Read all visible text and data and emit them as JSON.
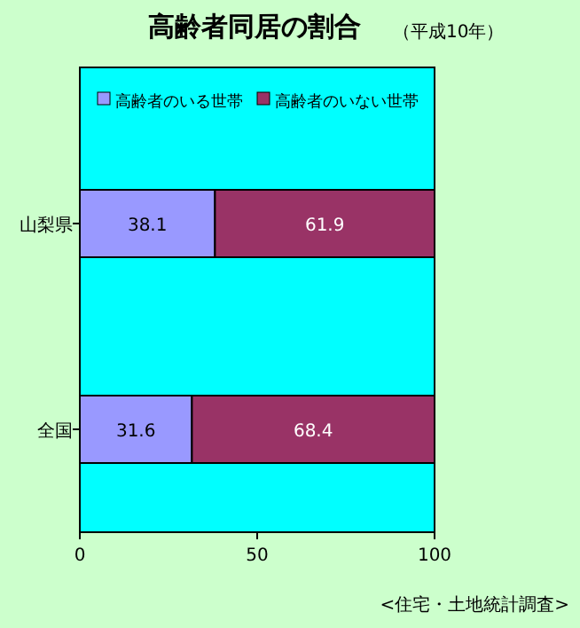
{
  "chart_data": {
    "type": "bar",
    "orientation": "horizontal",
    "stacked": true,
    "title": "高齢者同居の割合",
    "subtitle": "（平成10年）",
    "categories": [
      "山梨県",
      "全国"
    ],
    "series": [
      {
        "name": "高齢者のいる世帯",
        "color": "#9999ff",
        "values": [
          38.1,
          31.6
        ]
      },
      {
        "name": "高齢者のいない世帯",
        "color": "#993366",
        "values": [
          61.9,
          68.4
        ]
      }
    ],
    "xlim": [
      0,
      100
    ],
    "xticks": [
      0,
      50,
      100
    ],
    "data_labels": true,
    "legend": "top",
    "annotations": [
      "<住宅・土地統計調査>"
    ]
  }
}
